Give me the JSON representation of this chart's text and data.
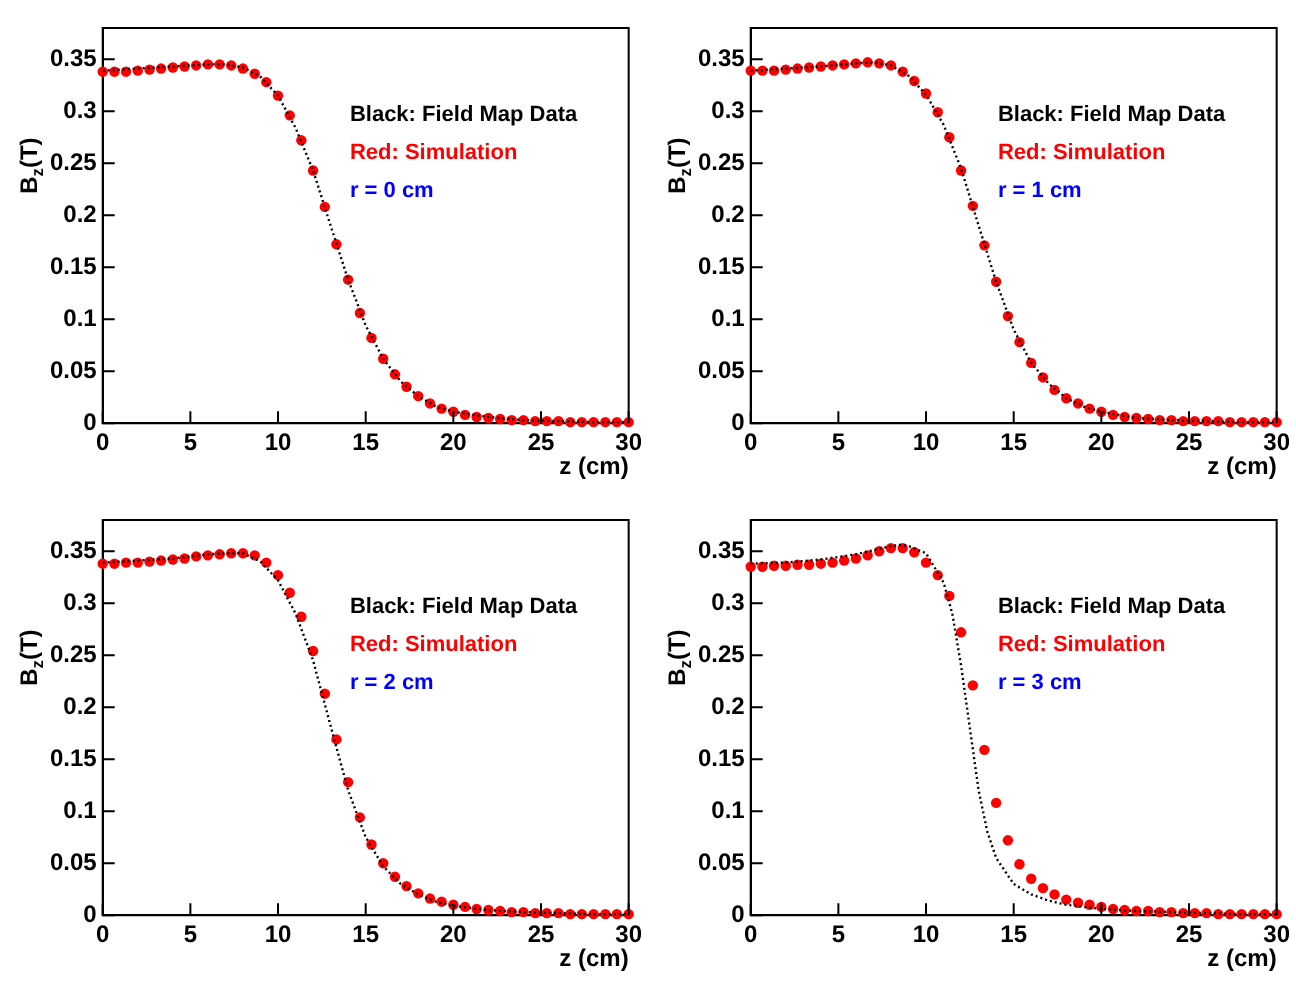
{
  "chart_data": [
    {
      "type": "scatter",
      "xlabel": "z (cm)",
      "ylabel": "B$_{z}$(T)",
      "xlim": [
        0,
        30
      ],
      "ylim": [
        0,
        0.38
      ],
      "xticks": [
        0,
        5,
        10,
        15,
        20,
        25,
        30
      ],
      "yticks": [
        0,
        0.05,
        0.1,
        0.15,
        0.2,
        0.25,
        0.3,
        0.35
      ],
      "grid": false,
      "legend": "right",
      "annotations": [
        "r = 0 cm"
      ],
      "series": [
        {
          "name": "Black: Field Map Data",
          "type": "line",
          "color": "#000000",
          "marker": "none",
          "line_style": "dotted",
          "x": [
            0,
            2,
            4,
            6,
            7,
            8,
            9,
            10,
            11,
            12,
            13,
            14,
            15,
            16,
            17,
            18,
            19,
            20,
            22,
            24,
            26,
            28,
            30
          ],
          "values": [
            0.339,
            0.341,
            0.343,
            0.345,
            0.345,
            0.342,
            0.333,
            0.315,
            0.284,
            0.243,
            0.19,
            0.138,
            0.094,
            0.062,
            0.04,
            0.026,
            0.016,
            0.011,
            0.006,
            0.003,
            0.002,
            0.001,
            0.001
          ]
        },
        {
          "name": "Red: Simulation",
          "type": "scatter",
          "color": "#ff0000",
          "marker": "circle",
          "x": [
            0,
            0.67,
            1.33,
            2,
            2.67,
            3.33,
            4,
            4.67,
            5.33,
            6,
            6.67,
            7.33,
            8,
            8.67,
            9.33,
            10,
            10.67,
            11.33,
            12,
            12.67,
            13.33,
            14,
            14.67,
            15.33,
            16,
            16.67,
            17.33,
            18,
            18.67,
            19.33,
            20,
            20.67,
            21.33,
            22,
            22.67,
            23.33,
            24,
            24.67,
            25.33,
            26,
            26.67,
            27.33,
            28,
            28.67,
            29.33,
            30
          ],
          "values": [
            0.338,
            0.338,
            0.338,
            0.339,
            0.34,
            0.341,
            0.342,
            0.343,
            0.344,
            0.345,
            0.345,
            0.344,
            0.341,
            0.336,
            0.328,
            0.315,
            0.296,
            0.272,
            0.243,
            0.208,
            0.172,
            0.138,
            0.106,
            0.082,
            0.062,
            0.047,
            0.035,
            0.026,
            0.019,
            0.014,
            0.011,
            0.008,
            0.006,
            0.005,
            0.004,
            0.003,
            0.003,
            0.002,
            0.002,
            0.002,
            0.001,
            0.001,
            0.001,
            0.001,
            0.001,
            0.001
          ]
        }
      ]
    },
    {
      "type": "scatter",
      "xlabel": "z (cm)",
      "ylabel": "B$_{z}$(T)",
      "xlim": [
        0,
        30
      ],
      "ylim": [
        0,
        0.38
      ],
      "xticks": [
        0,
        5,
        10,
        15,
        20,
        25,
        30
      ],
      "yticks": [
        0,
        0.05,
        0.1,
        0.15,
        0.2,
        0.25,
        0.3,
        0.35
      ],
      "grid": false,
      "legend": "right",
      "annotations": [
        "r = 1 cm"
      ],
      "series": [
        {
          "name": "Black: Field Map Data",
          "type": "line",
          "color": "#000000",
          "marker": "none",
          "line_style": "dotted",
          "x": [
            0,
            2,
            4,
            6,
            7,
            8,
            9,
            10,
            11,
            12,
            13,
            14,
            15,
            16,
            17,
            18,
            19,
            20,
            22,
            24,
            26,
            28,
            30
          ],
          "values": [
            0.339,
            0.341,
            0.343,
            0.346,
            0.347,
            0.344,
            0.334,
            0.316,
            0.287,
            0.245,
            0.19,
            0.136,
            0.09,
            0.058,
            0.038,
            0.024,
            0.016,
            0.011,
            0.005,
            0.003,
            0.002,
            0.001,
            0.001
          ]
        },
        {
          "name": "Red: Simulation",
          "type": "scatter",
          "color": "#ff0000",
          "marker": "circle",
          "x": [
            0,
            0.67,
            1.33,
            2,
            2.67,
            3.33,
            4,
            4.67,
            5.33,
            6,
            6.67,
            7.33,
            8,
            8.67,
            9.33,
            10,
            10.67,
            11.33,
            12,
            12.67,
            13.33,
            14,
            14.67,
            15.33,
            16,
            16.67,
            17.33,
            18,
            18.67,
            19.33,
            20,
            20.67,
            21.33,
            22,
            22.67,
            23.33,
            24,
            24.67,
            25.33,
            26,
            26.67,
            27.33,
            28,
            28.67,
            29.33,
            30
          ],
          "values": [
            0.339,
            0.339,
            0.339,
            0.34,
            0.341,
            0.342,
            0.343,
            0.344,
            0.345,
            0.346,
            0.347,
            0.346,
            0.344,
            0.338,
            0.329,
            0.317,
            0.299,
            0.275,
            0.243,
            0.209,
            0.171,
            0.136,
            0.103,
            0.078,
            0.058,
            0.044,
            0.032,
            0.024,
            0.019,
            0.014,
            0.011,
            0.008,
            0.006,
            0.005,
            0.004,
            0.003,
            0.003,
            0.002,
            0.002,
            0.002,
            0.002,
            0.001,
            0.001,
            0.001,
            0.001,
            0.001
          ]
        }
      ]
    },
    {
      "type": "scatter",
      "xlabel": "z (cm)",
      "ylabel": "B$_{z}$(T)",
      "xlim": [
        0,
        30
      ],
      "ylim": [
        0,
        0.38
      ],
      "xticks": [
        0,
        5,
        10,
        15,
        20,
        25,
        30
      ],
      "yticks": [
        0,
        0.05,
        0.1,
        0.15,
        0.2,
        0.25,
        0.3,
        0.35
      ],
      "grid": false,
      "legend": "right",
      "annotations": [
        "r = 2 cm"
      ],
      "series": [
        {
          "name": "Black: Field Map Data",
          "type": "line",
          "color": "#000000",
          "marker": "none",
          "line_style": "dotted",
          "x": [
            0,
            2,
            4,
            6,
            7,
            8,
            9,
            10,
            11,
            12,
            13,
            14,
            15,
            16,
            17,
            18,
            19,
            20,
            22,
            24,
            26,
            28,
            30
          ],
          "values": [
            0.339,
            0.341,
            0.343,
            0.347,
            0.348,
            0.348,
            0.34,
            0.322,
            0.29,
            0.245,
            0.182,
            0.12,
            0.075,
            0.047,
            0.03,
            0.02,
            0.013,
            0.009,
            0.005,
            0.003,
            0.002,
            0.001,
            0.001
          ]
        },
        {
          "name": "Red: Simulation",
          "type": "scatter",
          "color": "#ff0000",
          "marker": "circle",
          "x": [
            0,
            0.67,
            1.33,
            2,
            2.67,
            3.33,
            4,
            4.67,
            5.33,
            6,
            6.67,
            7.33,
            8,
            8.67,
            9.33,
            10,
            10.67,
            11.33,
            12,
            12.67,
            13.33,
            14,
            14.67,
            15.33,
            16,
            16.67,
            17.33,
            18,
            18.67,
            19.33,
            20,
            20.67,
            21.33,
            22,
            22.67,
            23.33,
            24,
            24.67,
            25.33,
            26,
            26.67,
            27.33,
            28,
            28.67,
            29.33,
            30
          ],
          "values": [
            0.338,
            0.338,
            0.339,
            0.339,
            0.34,
            0.341,
            0.342,
            0.343,
            0.345,
            0.346,
            0.347,
            0.348,
            0.348,
            0.346,
            0.339,
            0.327,
            0.31,
            0.287,
            0.254,
            0.213,
            0.169,
            0.128,
            0.094,
            0.068,
            0.05,
            0.037,
            0.028,
            0.021,
            0.016,
            0.013,
            0.01,
            0.008,
            0.006,
            0.005,
            0.004,
            0.003,
            0.003,
            0.002,
            0.002,
            0.002,
            0.001,
            0.001,
            0.001,
            0.001,
            0.001,
            0.001
          ]
        }
      ]
    },
    {
      "type": "scatter",
      "xlabel": "z (cm)",
      "ylabel": "B$_{z}$(T)",
      "xlim": [
        0,
        30
      ],
      "ylim": [
        0,
        0.38
      ],
      "xticks": [
        0,
        5,
        10,
        15,
        20,
        25,
        30
      ],
      "yticks": [
        0,
        0.05,
        0.1,
        0.15,
        0.2,
        0.25,
        0.3,
        0.35
      ],
      "grid": false,
      "legend": "right",
      "annotations": [
        "r = 3 cm"
      ],
      "series": [
        {
          "name": "Black: Field Map Data",
          "type": "line",
          "color": "#000000",
          "marker": "none",
          "line_style": "dotted",
          "x": [
            0,
            2,
            4,
            6,
            7,
            8,
            8.5,
            9,
            10,
            11,
            11.5,
            12,
            12.5,
            13,
            13.5,
            14,
            15,
            16,
            17,
            18,
            19,
            20,
            22,
            24,
            26,
            28,
            30
          ],
          "values": [
            0.338,
            0.339,
            0.342,
            0.347,
            0.351,
            0.355,
            0.356,
            0.355,
            0.348,
            0.32,
            0.29,
            0.24,
            0.18,
            0.12,
            0.08,
            0.055,
            0.03,
            0.02,
            0.014,
            0.01,
            0.008,
            0.006,
            0.004,
            0.003,
            0.002,
            0.001,
            0.001
          ]
        },
        {
          "name": "Red: Simulation",
          "type": "scatter",
          "color": "#ff0000",
          "marker": "circle",
          "x": [
            0,
            0.67,
            1.33,
            2,
            2.67,
            3.33,
            4,
            4.67,
            5.33,
            6,
            6.67,
            7.33,
            8,
            8.67,
            9.33,
            10,
            10.67,
            11.33,
            12,
            12.67,
            13.33,
            14,
            14.67,
            15.33,
            16,
            16.67,
            17.33,
            18,
            18.67,
            19.33,
            20,
            20.67,
            21.33,
            22,
            22.67,
            23.33,
            24,
            24.67,
            25.33,
            26,
            26.67,
            27.33,
            28,
            28.67,
            29.33,
            30
          ],
          "values": [
            0.335,
            0.335,
            0.336,
            0.336,
            0.337,
            0.337,
            0.338,
            0.339,
            0.341,
            0.343,
            0.346,
            0.35,
            0.353,
            0.353,
            0.349,
            0.339,
            0.327,
            0.307,
            0.272,
            0.221,
            0.159,
            0.108,
            0.072,
            0.049,
            0.035,
            0.026,
            0.02,
            0.015,
            0.012,
            0.01,
            0.008,
            0.006,
            0.005,
            0.004,
            0.004,
            0.003,
            0.003,
            0.002,
            0.002,
            0.002,
            0.001,
            0.001,
            0.001,
            0.001,
            0.001,
            0.001
          ]
        }
      ]
    }
  ]
}
